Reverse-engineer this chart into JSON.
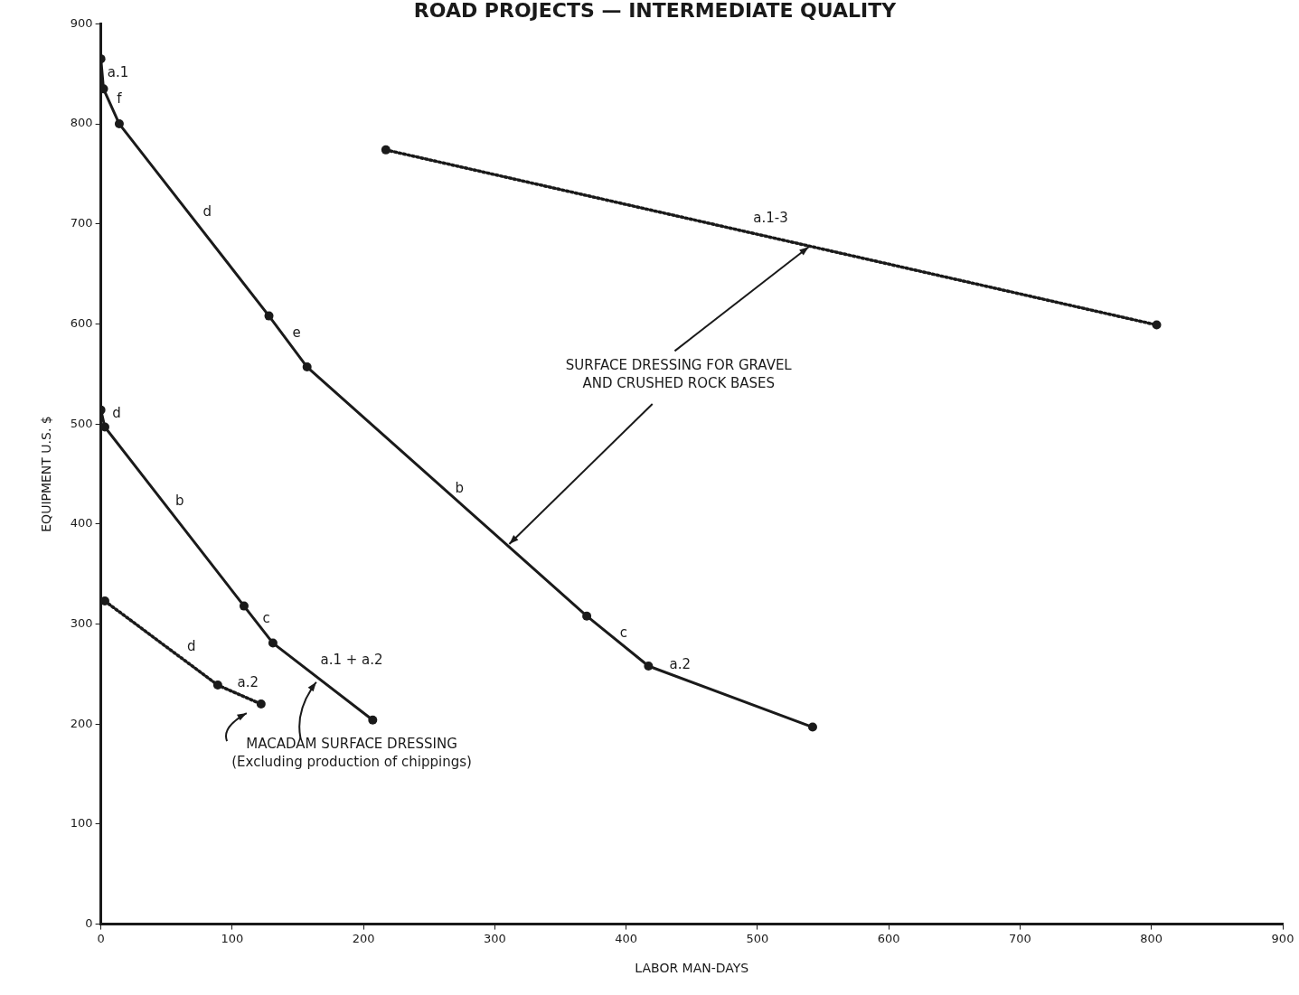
{
  "chart_data": {
    "type": "line",
    "title": "ROAD PROJECTS — INTERMEDIATE QUALITY",
    "xlabel": "LABOR MAN-DAYS",
    "ylabel": "EQUIPMENT U.S. $",
    "xlim": [
      0,
      900
    ],
    "xticks": [
      0,
      100,
      200,
      300,
      400,
      500,
      600,
      700,
      800,
      900
    ],
    "ylim": [
      0,
      900
    ],
    "yticks": [
      0,
      100,
      200,
      300,
      400,
      500,
      600,
      700,
      800,
      900
    ],
    "grid": false,
    "legend": false,
    "marker": "circle",
    "series": [
      {
        "color": "#1a1a1a",
        "line_style": "solid",
        "x": [
          0,
          2,
          14,
          128,
          157,
          370,
          417,
          542
        ],
        "values": [
          865,
          835,
          800,
          608,
          557,
          308,
          258,
          197
        ]
      },
      {
        "color": "#1a1a1a",
        "line_style": "solid",
        "x": [
          0,
          3,
          109,
          131,
          207
        ],
        "values": [
          514,
          497,
          318,
          281,
          204
        ]
      },
      {
        "color": "#1a1a1a",
        "line_style": "dotted",
        "x": [
          3,
          89,
          122
        ],
        "values": [
          323,
          239,
          220
        ]
      },
      {
        "color": "#1a1a1a",
        "line_style": "dotted",
        "x": [
          217,
          804
        ],
        "values": [
          774,
          599
        ]
      }
    ],
    "annotations": [
      "a.1",
      "f",
      "d",
      "e",
      "b",
      "c",
      "a.2",
      "d",
      "b",
      "c",
      "a.1 + a.2",
      "d",
      "a.2",
      "a.1-3",
      {
        "text": "SURFACE DRESSING FOR GRAVEL\nAND CRUSHED ROCK BASES",
        "x": 539,
        "y": 677
      },
      {
        "text": "MACADAM SURFACE DRESSING\n(Excluding production of chippings)",
        "x": 164,
        "y": 242
      }
    ]
  }
}
